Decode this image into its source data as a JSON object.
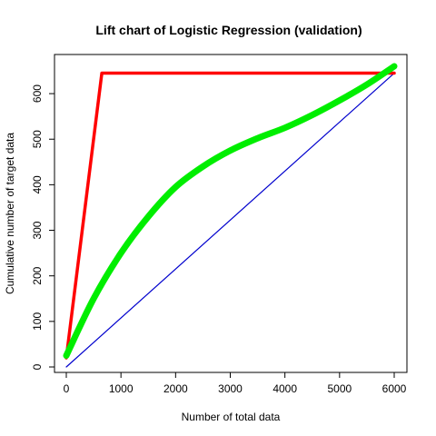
{
  "chart_data": {
    "type": "line",
    "title": "Lift chart of Logistic Regression (validation)",
    "xlabel": "Number of total data",
    "ylabel": "Cumulative number of target data",
    "xlim": [
      0,
      6000
    ],
    "ylim": [
      0,
      650
    ],
    "xticks": [
      "0",
      "1000",
      "2000",
      "3000",
      "4000",
      "5000",
      "6000"
    ],
    "yticks": [
      "0",
      "100",
      "200",
      "300",
      "400",
      "500",
      "600"
    ],
    "grid": false,
    "legend": "none",
    "series": [
      {
        "color": "#0000cd",
        "x": [
          0,
          6000
        ],
        "y": [
          0,
          645
        ]
      },
      {
        "color": "#ff0000",
        "x": [
          0,
          650,
          6000
        ],
        "y": [
          20,
          645,
          645
        ]
      },
      {
        "color": "#00ee00",
        "x": [
          0,
          500,
          1000,
          1500,
          2000,
          2500,
          3000,
          3500,
          4000,
          4500,
          5000,
          5500,
          6000
        ],
        "y": [
          25,
          150,
          250,
          330,
          395,
          440,
          475,
          502,
          525,
          553,
          585,
          620,
          660
        ]
      }
    ]
  }
}
